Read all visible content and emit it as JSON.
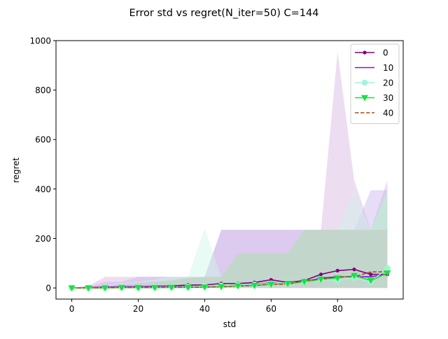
{
  "chart_data": {
    "type": "line",
    "title": "Error std vs regret(N_iter=50) C=144",
    "xlabel": "std",
    "ylabel": "regret",
    "xlim": [
      -4.75,
      99.75
    ],
    "ylim": [
      -45,
      1000
    ],
    "xticks": [
      0,
      20,
      40,
      60,
      80
    ],
    "yticks": [
      0,
      200,
      400,
      600,
      800,
      1000
    ],
    "grid": false,
    "legend_position": "top-right",
    "x": [
      0,
      5,
      10,
      15,
      20,
      25,
      30,
      35,
      40,
      45,
      50,
      55,
      60,
      65,
      70,
      75,
      80,
      85,
      90,
      95
    ],
    "series": [
      {
        "name": "0",
        "color": "#800080",
        "linestyle": "solid",
        "marker": "dot",
        "values": [
          0,
          2,
          3,
          5,
          5,
          7,
          8,
          12,
          12,
          18,
          18,
          22,
          33,
          22,
          30,
          55,
          70,
          75,
          55,
          55
        ],
        "band_lower": [
          0,
          0,
          0,
          0,
          0,
          0,
          0,
          0,
          0,
          0,
          0,
          0,
          0,
          0,
          0,
          0,
          0,
          0,
          0,
          0
        ],
        "band_upper": [
          0,
          8,
          45,
          45,
          45,
          45,
          45,
          45,
          45,
          235,
          235,
          235,
          235,
          235,
          235,
          235,
          955,
          435,
          235,
          435
        ],
        "band_color": "#d8b4dd"
      },
      {
        "name": "10",
        "color": "#8a10d6",
        "linestyle": "solid",
        "marker": "none",
        "values": [
          0,
          1,
          2,
          3,
          4,
          5,
          6,
          7,
          8,
          10,
          12,
          15,
          20,
          18,
          25,
          40,
          45,
          45,
          45,
          55
        ],
        "band_lower": [
          0,
          0,
          0,
          0,
          0,
          0,
          0,
          0,
          0,
          0,
          0,
          0,
          0,
          0,
          0,
          0,
          0,
          0,
          0,
          0
        ],
        "band_upper": [
          0,
          5,
          25,
          25,
          45,
          45,
          45,
          45,
          45,
          235,
          235,
          235,
          235,
          235,
          235,
          235,
          235,
          235,
          395,
          395
        ],
        "band_color": "#c9b3ee"
      },
      {
        "name": "20",
        "color": "#9ff5d6",
        "linestyle": "solid",
        "marker": "circle",
        "values": [
          0,
          0,
          1,
          2,
          2,
          3,
          4,
          5,
          8,
          10,
          12,
          14,
          18,
          20,
          25,
          35,
          30,
          40,
          25,
          80
        ],
        "band_lower": [
          0,
          0,
          0,
          0,
          0,
          0,
          0,
          0,
          0,
          0,
          0,
          0,
          0,
          0,
          0,
          0,
          0,
          0,
          0,
          0
        ],
        "band_upper": [
          0,
          5,
          10,
          20,
          25,
          35,
          45,
          45,
          240,
          45,
          140,
          140,
          140,
          140,
          235,
          235,
          235,
          395,
          235,
          395
        ],
        "band_color": "#cdf7e6"
      },
      {
        "name": "30",
        "color": "#14e43e",
        "linestyle": "solid",
        "marker": "triangle-down",
        "values": [
          0,
          0,
          0,
          1,
          1,
          1,
          2,
          2,
          3,
          5,
          8,
          10,
          15,
          18,
          25,
          35,
          40,
          50,
          30,
          60
        ],
        "band_lower": [
          0,
          0,
          0,
          0,
          0,
          0,
          0,
          0,
          0,
          0,
          0,
          0,
          0,
          0,
          0,
          0,
          0,
          0,
          0,
          0
        ],
        "band_upper": [
          0,
          5,
          10,
          15,
          20,
          25,
          35,
          40,
          45,
          45,
          140,
          140,
          140,
          140,
          235,
          235,
          235,
          235,
          235,
          395
        ],
        "band_color": "#b6ecc0"
      },
      {
        "name": "40",
        "color": "#a0521a",
        "linestyle": "dashed",
        "marker": "none",
        "values": [
          0,
          0,
          1,
          1,
          2,
          2,
          3,
          3,
          4,
          5,
          8,
          10,
          15,
          15,
          30,
          35,
          45,
          45,
          65,
          65
        ],
        "band_lower": [
          0,
          0,
          0,
          0,
          0,
          0,
          0,
          0,
          0,
          0,
          0,
          0,
          0,
          0,
          0,
          0,
          0,
          0,
          0,
          0
        ],
        "band_upper": [
          0,
          5,
          10,
          15,
          20,
          25,
          30,
          40,
          45,
          45,
          140,
          140,
          140,
          140,
          235,
          235,
          235,
          235,
          235,
          235
        ],
        "band_color": "#bfc6bf"
      }
    ]
  }
}
